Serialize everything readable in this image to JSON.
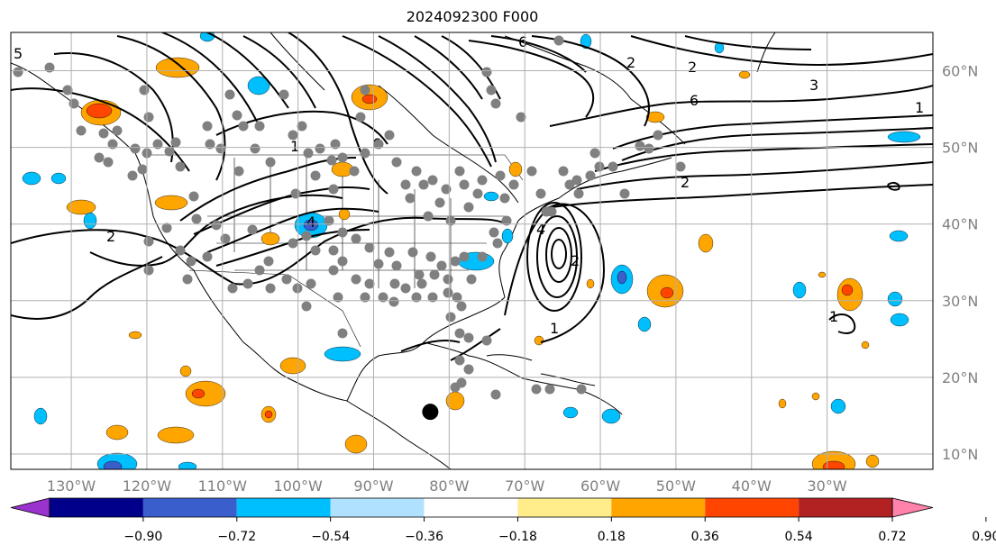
{
  "title": "2024092300 F000",
  "map": {
    "lon_range": [
      -138,
      -16
    ],
    "lat_range": [
      8,
      65
    ],
    "lon_ticks": [
      -130,
      -120,
      -110,
      -100,
      -90,
      -80,
      -70,
      -60,
      -50,
      -40,
      -30
    ],
    "lon_labels": [
      "130°W",
      "120°W",
      "110°W",
      "100°W",
      "90°W",
      "80°W",
      "70°W",
      "60°W",
      "50°W",
      "40°W",
      "30°W"
    ],
    "lat_ticks": [
      10,
      20,
      30,
      40,
      50,
      60
    ],
    "lat_labels": [
      "10°N",
      "20°N",
      "30°N",
      "40°N",
      "50°N",
      "60°N"
    ],
    "gridlines": true,
    "marker": {
      "lon": -82.5,
      "lat": 15.5
    },
    "contour_labels": [
      "1",
      "2",
      "3",
      "4",
      "5",
      "6"
    ]
  },
  "colorbar": {
    "ticks": [
      "−0.90",
      "−0.72",
      "−0.54",
      "−0.36",
      "−0.18",
      "0.18",
      "0.36",
      "0.54",
      "0.72",
      "0.90"
    ],
    "colors": [
      "#9a32cd",
      "#00008b",
      "#3a5fcd",
      "#00bfff",
      "#b0e2ff",
      "#ffffff",
      "#ffec8b",
      "#ffa500",
      "#ff4500",
      "#b22222",
      "#ff82ab"
    ]
  },
  "colors": {
    "gridline": "#b0b0b0",
    "stations": "#808080",
    "marker": "#000000",
    "contours": "#000000"
  }
}
